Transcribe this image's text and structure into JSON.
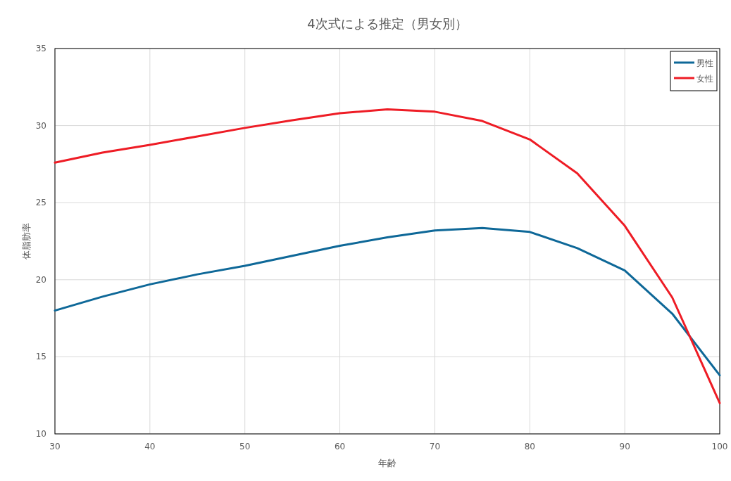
{
  "chart_data": {
    "type": "line",
    "title": "4次式による推定（男女別）",
    "xlabel": "年齢",
    "ylabel": "体脂肪率",
    "x": [
      30,
      35,
      40,
      45,
      50,
      55,
      60,
      65,
      70,
      75,
      80,
      85,
      90,
      95,
      100
    ],
    "series": [
      {
        "name": "男性",
        "color": "#0e6898",
        "values": [
          18.0,
          18.9,
          19.7,
          20.35,
          20.9,
          21.55,
          22.2,
          22.75,
          23.2,
          23.35,
          23.1,
          22.05,
          20.6,
          17.8,
          13.8
        ]
      },
      {
        "name": "女性",
        "color": "#ee1c25",
        "values": [
          27.6,
          28.25,
          28.75,
          29.3,
          29.85,
          30.35,
          30.8,
          31.05,
          30.9,
          30.3,
          29.1,
          26.9,
          23.5,
          18.85,
          12.0
        ]
      }
    ],
    "xlim": [
      30,
      100
    ],
    "xticks": [
      30,
      40,
      50,
      60,
      70,
      80,
      90,
      100
    ],
    "ylim": [
      10,
      35
    ],
    "yticks": [
      10,
      15,
      20,
      25,
      30,
      35
    ],
    "grid": true,
    "legend": "top right"
  }
}
